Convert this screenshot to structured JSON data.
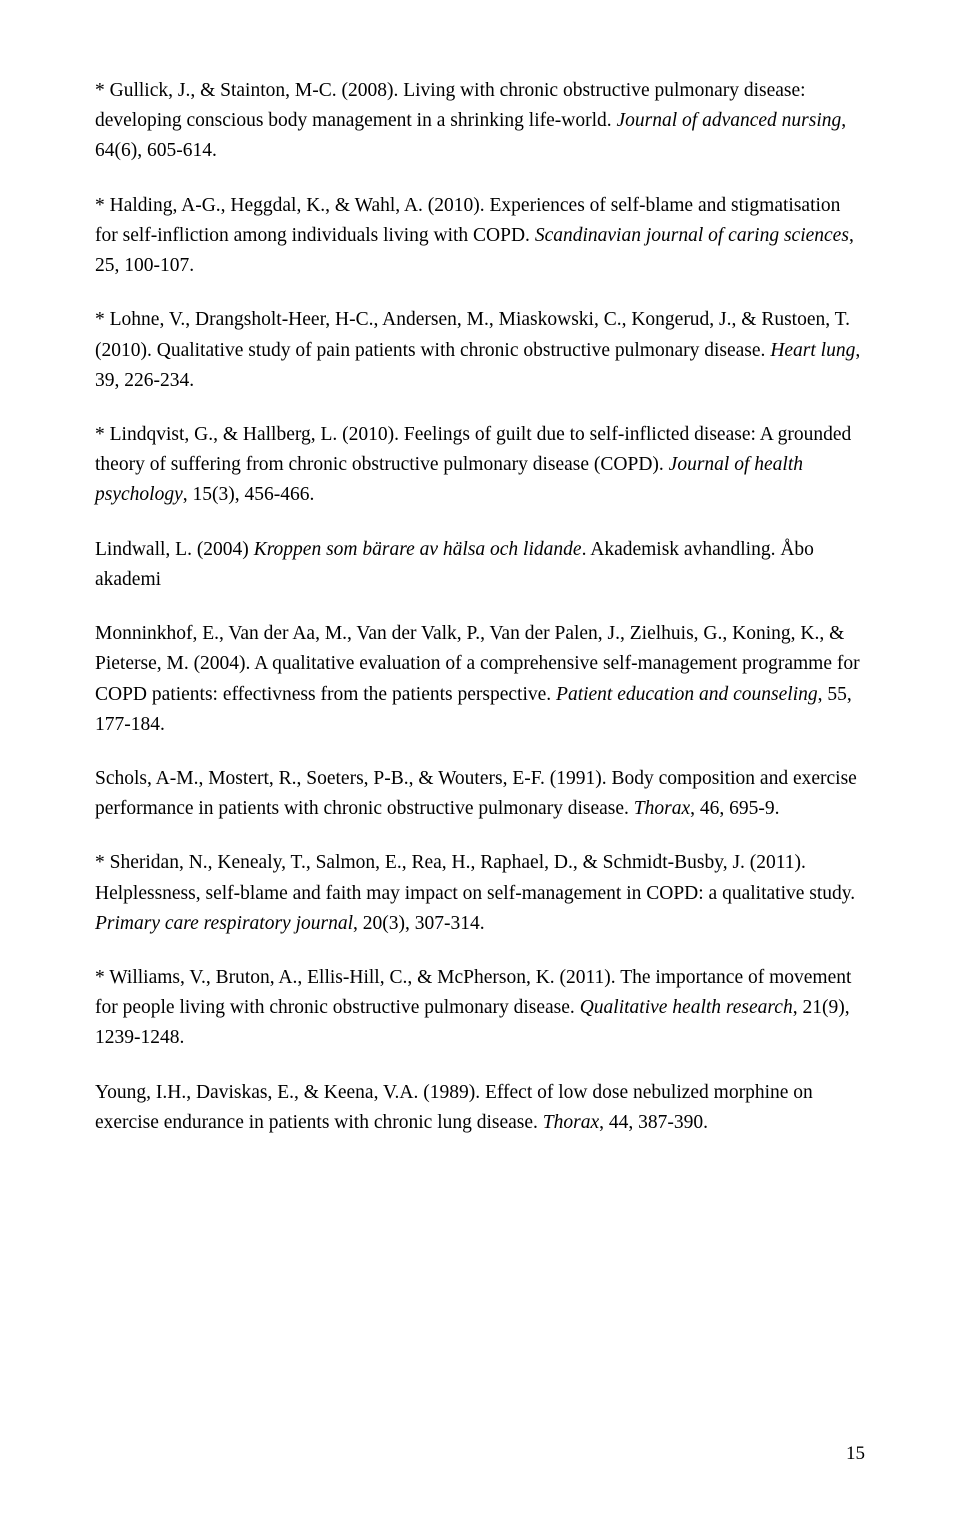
{
  "page_number": "15",
  "references": [
    {
      "prefix": "* Gullick, J., & Stainton, M-C. (2008). Living with chronic obstructive pulmonary disease: developing conscious body management in a shrinking life-world. ",
      "italic": "Journal of advanced nursing",
      "suffix": ", 64(6), 605-614."
    },
    {
      "prefix": "* Halding, A-G., Heggdal, K., & Wahl, A. (2010). Experiences of self-blame and stigmatisation for self-infliction among individuals living with COPD. ",
      "italic": "Scandinavian journal of caring sciences",
      "suffix": ", 25, 100-107."
    },
    {
      "prefix": "* Lohne, V., Drangsholt-Heer, H-C., Andersen, M., Miaskowski, C., Kongerud, J., & Rustoen, T. (2010). Qualitative study of pain patients with chronic obstructive pulmonary disease. ",
      "italic": "Heart lung",
      "suffix": ", 39, 226-234."
    },
    {
      "prefix": "* Lindqvist, G., & Hallberg, L. (2010). Feelings of guilt due to self-inflicted disease: A grounded theory of suffering from chronic obstructive pulmonary disease (COPD). ",
      "italic": "Journal of health psychology",
      "suffix": ", 15(3), 456-466."
    },
    {
      "prefix": "Lindwall, L. (2004) ",
      "italic": "Kroppen som bärare av hälsa och lidande",
      "suffix": ". Akademisk avhandling. Åbo akademi"
    },
    {
      "prefix": "Monninkhof, E., Van der Aa, M., Van der Valk, P., Van der Palen, J., Zielhuis, G., Koning, K., & Pieterse, M. (2004). A qualitative evaluation of a comprehensive self-management programme for COPD patients: effectivness from the patients perspective. ",
      "italic": "Patient education and counseling",
      "suffix": ", 55, 177-184."
    },
    {
      "prefix": "Schols, A-M., Mostert, R., Soeters, P-B., & Wouters, E-F. (1991). Body composition and exercise performance in patients with chronic obstructive pulmonary disease. ",
      "italic": "Thorax",
      "suffix": ", 46, 695-9."
    },
    {
      "prefix": "* Sheridan, N., Kenealy, T., Salmon, E., Rea, H., Raphael, D., & Schmidt-Busby, J. (2011). Helplessness, self-blame and faith may impact on self-management in COPD: a qualitative study. ",
      "italic": "Primary care respiratory journal",
      "suffix": ", 20(3), 307-314."
    },
    {
      "prefix": "* Williams, V., Bruton, A., Ellis-Hill, C., & McPherson, K. (2011). The importance of movement for people living with chronic obstructive pulmonary disease. ",
      "italic": "Qualitative health research",
      "suffix": ", 21(9), 1239-1248."
    },
    {
      "prefix": "Young, I.H., Daviskas, E., & Keena, V.A. (1989). Effect of low dose nebulized morphine on exercise endurance in patients with chronic lung disease. ",
      "italic": "Thorax",
      "suffix": ", 44, 387-390."
    }
  ]
}
